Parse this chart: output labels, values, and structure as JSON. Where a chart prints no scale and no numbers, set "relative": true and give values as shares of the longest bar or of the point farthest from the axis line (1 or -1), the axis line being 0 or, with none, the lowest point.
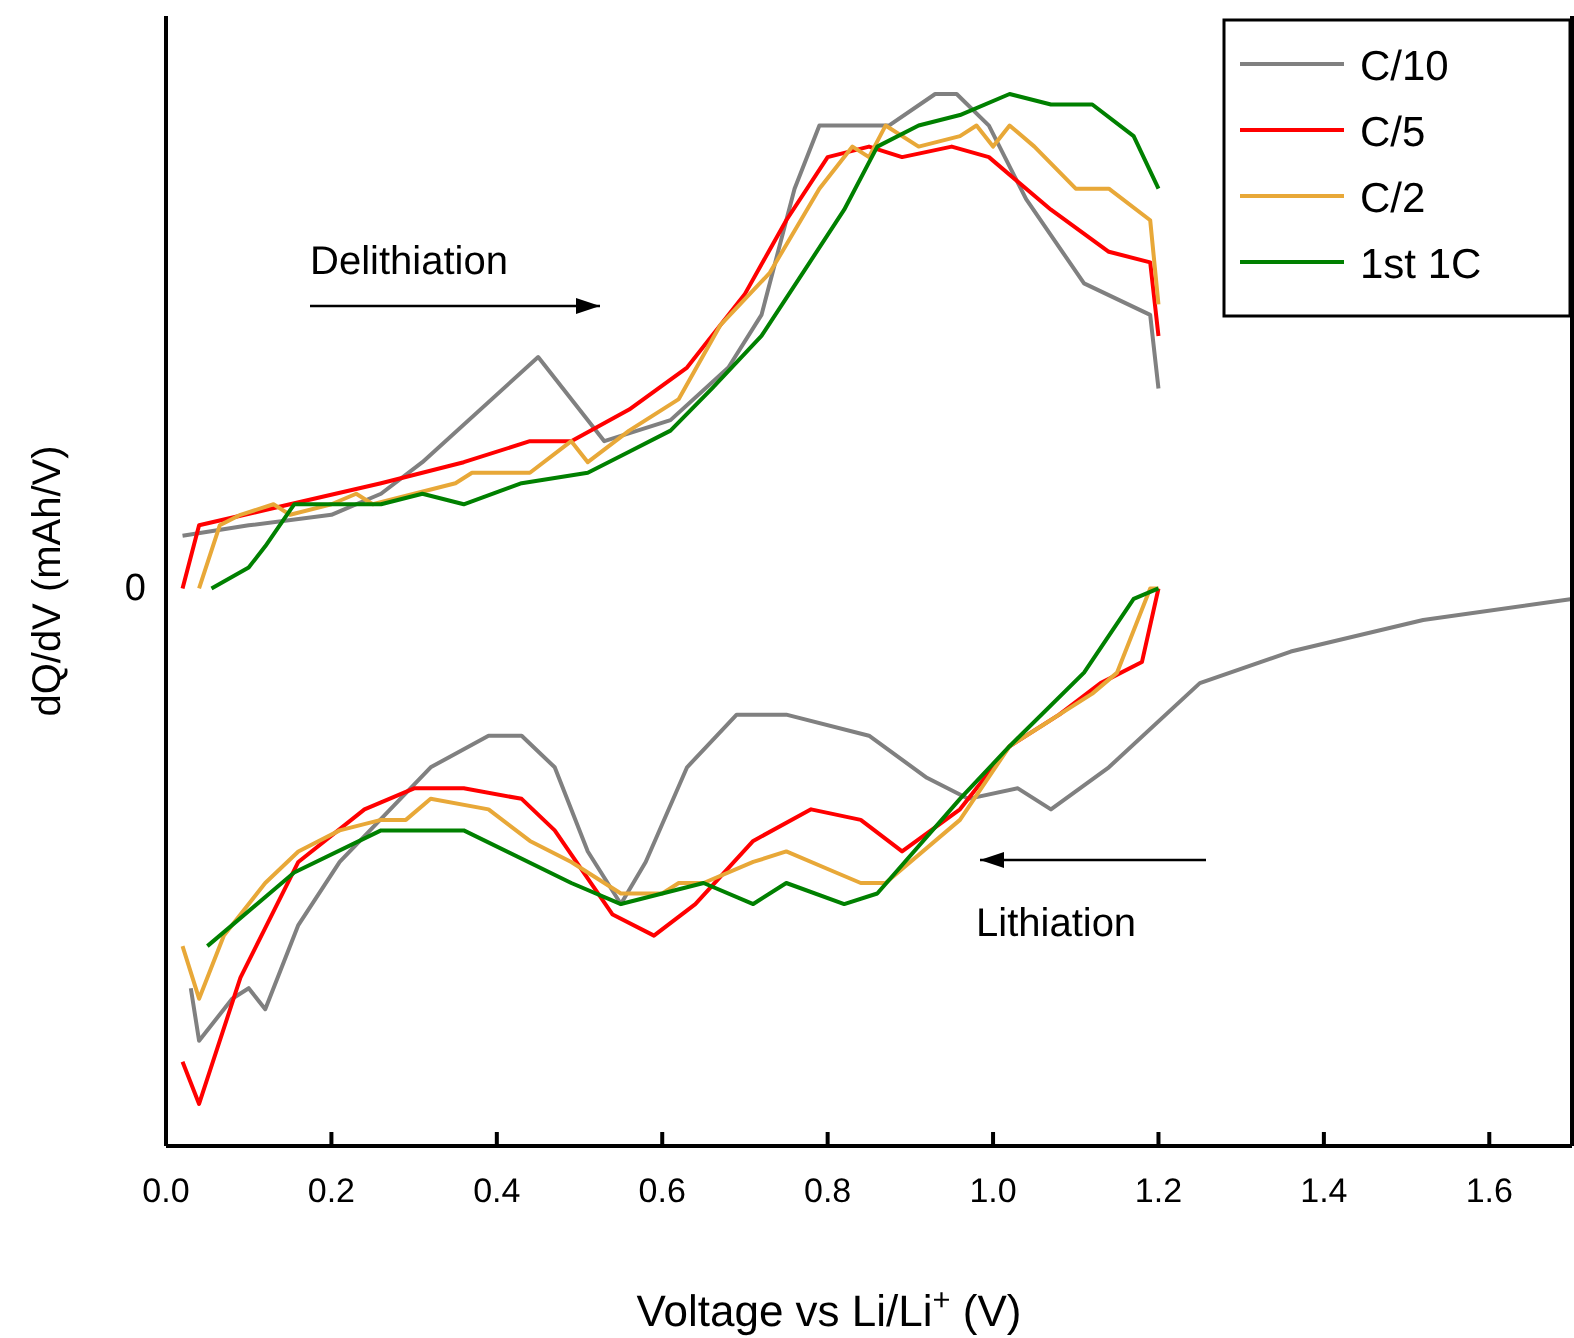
{
  "chart_data": {
    "type": "line",
    "relative": true,
    "xlabel": "Voltage vs Li/Li$^{+}$ (V)",
    "ylabel": "dQ/dV (mAh/V)",
    "xlim": [
      0,
      1.7
    ],
    "xticks": [
      {
        "value": 0,
        "label": "0.0"
      },
      {
        "value": 0.2,
        "label": "0.2"
      },
      {
        "value": 0.4,
        "label": "0.4"
      },
      {
        "value": 0.6,
        "label": "0.6"
      },
      {
        "value": 0.8,
        "label": "0.8"
      },
      {
        "value": 1,
        "label": "1.0"
      },
      {
        "value": 1.2,
        "label": "1.2"
      },
      {
        "value": 1.4,
        "label": "1.4"
      },
      {
        "value": 1.6,
        "label": "1.6"
      }
    ],
    "legend": "top right",
    "grid": false,
    "marker": "none",
    "line_style": "solid",
    "annotations": [
      "0",
      "Delithiation",
      "Lithiation"
    ],
    "series": [
      {
        "name": "C/10",
        "color": "#808080",
        "x": [
          0.02,
          0.1,
          0.2,
          0.26,
          0.31,
          0.45,
          0.53,
          0.61,
          0.68,
          0.72,
          0.76,
          0.79,
          0.835,
          0.874,
          0.93,
          0.956,
          0.995,
          1.04,
          1.11,
          1.19,
          1.2
        ],
        "values": [
          0.58,
          0.59,
          0.6,
          0.62,
          0.65,
          0.75,
          0.67,
          0.69,
          0.74,
          0.79,
          0.91,
          0.97,
          0.97,
          0.97,
          1,
          1,
          0.97,
          0.9,
          0.82,
          0.79,
          0.72
        ]
      },
      {
        "name": "C/5",
        "color": "#ff0000",
        "x": [
          0.02,
          0.04,
          0.15,
          0.26,
          0.36,
          0.44,
          0.49,
          0.56,
          0.63,
          0.7,
          0.75,
          0.8,
          0.85,
          0.89,
          0.95,
          0.995,
          1.07,
          1.14,
          1.19,
          1.2
        ],
        "values": [
          0.53,
          0.59,
          0.61,
          0.63,
          0.65,
          0.67,
          0.67,
          0.7,
          0.74,
          0.81,
          0.88,
          0.94,
          0.95,
          0.94,
          0.95,
          0.94,
          0.89,
          0.85,
          0.84,
          0.77
        ]
      },
      {
        "name": "C/2",
        "color": "#e8a838",
        "x": [
          0.04,
          0.065,
          0.09,
          0.13,
          0.15,
          0.2,
          0.23,
          0.25,
          0.3,
          0.35,
          0.37,
          0.44,
          0.49,
          0.51,
          0.56,
          0.62,
          0.67,
          0.73,
          0.79,
          0.83,
          0.85,
          0.87,
          0.91,
          0.96,
          0.98,
          1,
          1.02,
          1.05,
          1.1,
          1.14,
          1.19,
          1.2
        ],
        "values": [
          0.53,
          0.59,
          0.6,
          0.61,
          0.6,
          0.61,
          0.62,
          0.61,
          0.62,
          0.63,
          0.64,
          0.64,
          0.67,
          0.65,
          0.68,
          0.71,
          0.78,
          0.83,
          0.91,
          0.95,
          0.94,
          0.97,
          0.95,
          0.96,
          0.97,
          0.95,
          0.97,
          0.95,
          0.91,
          0.91,
          0.88,
          0.8
        ]
      },
      {
        "name": "1st 1C",
        "color": "#008000",
        "x": [
          0.055,
          0.1,
          0.12,
          0.155,
          0.2,
          0.26,
          0.31,
          0.36,
          0.43,
          0.51,
          0.56,
          0.61,
          0.66,
          0.72,
          0.77,
          0.82,
          0.86,
          0.91,
          0.96,
          1.02,
          1.07,
          1.12,
          1.17,
          1.2
        ],
        "values": [
          0.53,
          0.55,
          0.57,
          0.61,
          0.61,
          0.61,
          0.62,
          0.61,
          0.63,
          0.64,
          0.66,
          0.68,
          0.72,
          0.77,
          0.83,
          0.89,
          0.95,
          0.97,
          0.98,
          1,
          0.99,
          0.99,
          0.96,
          0.91
        ]
      },
      {
        "color": "#808080",
        "x": [
          0.03,
          0.04,
          0.08,
          0.1,
          0.12,
          0.16,
          0.21,
          0.32,
          0.39,
          0.43,
          0.47,
          0.51,
          0.55,
          0.58,
          0.63,
          0.69,
          0.75,
          0.85,
          0.92,
          0.97,
          1.03,
          1.07,
          1.14,
          1.25,
          1.36,
          1.52,
          1.7
        ],
        "values": [
          0.15,
          0.1,
          0.14,
          0.15,
          0.13,
          0.21,
          0.27,
          0.36,
          0.39,
          0.39,
          0.36,
          0.28,
          0.23,
          0.27,
          0.36,
          0.41,
          0.41,
          0.39,
          0.35,
          0.33,
          0.34,
          0.32,
          0.36,
          0.44,
          0.47,
          0.5,
          0.52
        ]
      },
      {
        "color": "#ff0000",
        "x": [
          0.02,
          0.04,
          0.09,
          0.16,
          0.24,
          0.3,
          0.36,
          0.43,
          0.47,
          0.54,
          0.59,
          0.64,
          0.71,
          0.78,
          0.84,
          0.89,
          0.96,
          1.02,
          1.08,
          1.13,
          1.18,
          1.2
        ],
        "values": [
          0.08,
          0.04,
          0.16,
          0.27,
          0.32,
          0.34,
          0.34,
          0.33,
          0.3,
          0.22,
          0.2,
          0.23,
          0.29,
          0.32,
          0.31,
          0.28,
          0.32,
          0.38,
          0.41,
          0.44,
          0.46,
          0.53
        ]
      },
      {
        "color": "#e8a838",
        "x": [
          0.02,
          0.04,
          0.07,
          0.12,
          0.16,
          0.21,
          0.26,
          0.29,
          0.32,
          0.39,
          0.44,
          0.49,
          0.55,
          0.58,
          0.6,
          0.62,
          0.65,
          0.71,
          0.75,
          0.81,
          0.84,
          0.87,
          0.96,
          1.02,
          1.06,
          1.08,
          1.12,
          1.15,
          1.19,
          1.2
        ],
        "values": [
          0.19,
          0.14,
          0.2,
          0.25,
          0.28,
          0.3,
          0.31,
          0.31,
          0.33,
          0.32,
          0.29,
          0.27,
          0.24,
          0.24,
          0.24,
          0.25,
          0.25,
          0.27,
          0.28,
          0.26,
          0.25,
          0.25,
          0.31,
          0.38,
          0.4,
          0.41,
          0.43,
          0.45,
          0.53,
          0.53
        ]
      },
      {
        "color": "#008000",
        "x": [
          0.05,
          0.155,
          0.26,
          0.36,
          0.49,
          0.55,
          0.65,
          0.71,
          0.75,
          0.82,
          0.86,
          0.96,
          1.02,
          1.11,
          1.17,
          1.2
        ],
        "values": [
          0.19,
          0.26,
          0.3,
          0.3,
          0.25,
          0.23,
          0.25,
          0.23,
          0.25,
          0.23,
          0.24,
          0.33,
          0.38,
          0.45,
          0.52,
          0.53
        ]
      }
    ]
  }
}
